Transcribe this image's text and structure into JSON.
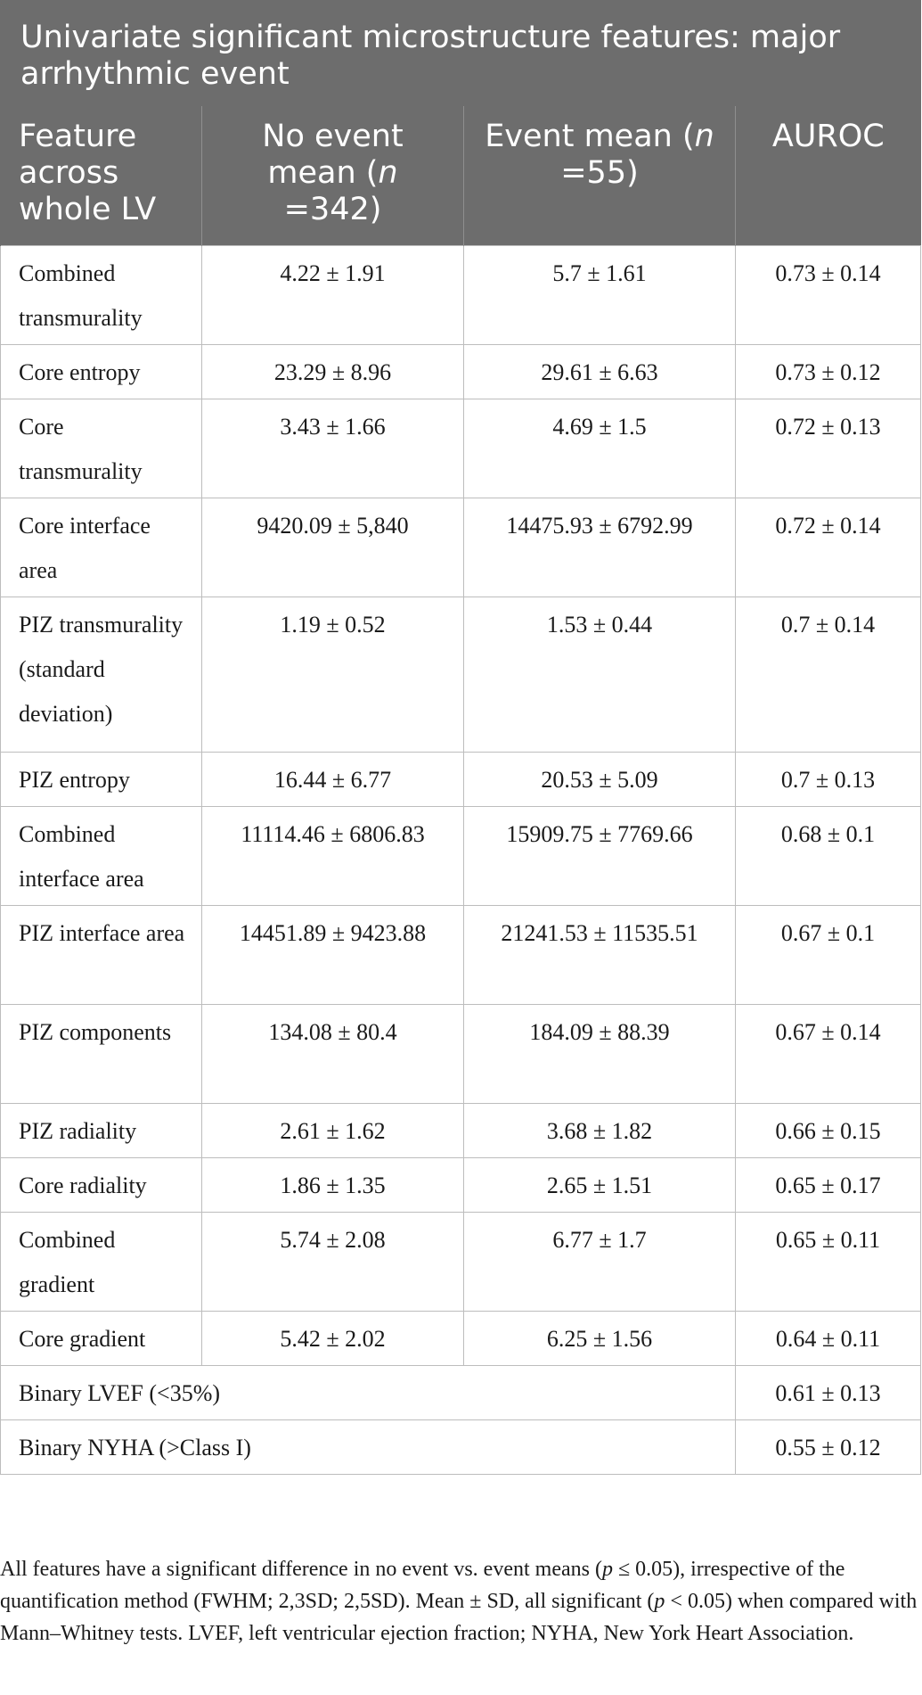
{
  "table": {
    "title": "Univariate significant microstructure features: major arrhythmic event",
    "headers": {
      "feature": "Feature across whole LV",
      "no_event_prefix": "No event mean (",
      "no_event_n_italic": "n",
      "no_event_suffix": " =342)",
      "event_prefix": "Event mean (",
      "event_n_italic": "n",
      "event_suffix": " =55)",
      "auroc": "AUROC"
    },
    "rows": [
      {
        "feature": "Combined transmurality",
        "no_event": "4.22 ± 1.91",
        "event": "5.7 ± 1.61",
        "auroc": "0.73 ± 0.14"
      },
      {
        "feature": "Core entropy",
        "no_event": "23.29 ± 8.96",
        "event": "29.61 ± 6.63",
        "auroc": "0.73 ± 0.12"
      },
      {
        "feature": "Core transmurality",
        "no_event": "3.43 ± 1.66",
        "event": "4.69 ± 1.5",
        "auroc": "0.72 ± 0.13"
      },
      {
        "feature": "Core interface area",
        "no_event": "9420.09 ± 5,840",
        "event": "14475.93 ± 6792.99",
        "auroc": "0.72 ± 0.14"
      },
      {
        "feature": "PIZ transmurality (standard deviation)",
        "no_event": "1.19 ± 0.52",
        "event": "1.53 ± 0.44",
        "auroc": "0.7 ± 0.14"
      },
      {
        "feature": "PIZ entropy",
        "no_event": "16.44 ± 6.77",
        "event": "20.53 ± 5.09",
        "auroc": "0.7 ± 0.13"
      },
      {
        "feature": "Combined interface area",
        "no_event": "11114.46 ± 6806.83",
        "event": "15909.75 ± 7769.66",
        "auroc": "0.68 ± 0.1"
      },
      {
        "feature": "PIZ interface area",
        "no_event": "14451.89 ± 9423.88",
        "event": "21241.53 ± 11535.51",
        "auroc": "0.67 ± 0.1"
      },
      {
        "feature": "PIZ components",
        "no_event": "134.08 ± 80.4",
        "event": "184.09 ± 88.39",
        "auroc": "0.67 ± 0.14"
      },
      {
        "feature": "PIZ radiality",
        "no_event": "2.61 ± 1.62",
        "event": "3.68 ± 1.82",
        "auroc": "0.66 ± 0.15"
      },
      {
        "feature": "Core radiality",
        "no_event": "1.86 ± 1.35",
        "event": "2.65 ± 1.51",
        "auroc": "0.65 ± 0.17"
      },
      {
        "feature": "Combined gradient",
        "no_event": "5.74 ± 2.08",
        "event": "6.77 ± 1.7",
        "auroc": "0.65 ± 0.11"
      },
      {
        "feature": "Core gradient",
        "no_event": "5.42 ± 2.02",
        "event": "6.25 ± 1.56",
        "auroc": "0.64 ± 0.11"
      }
    ],
    "binary_rows": [
      {
        "feature": "Binary LVEF (<35%)",
        "auroc": "0.61 ± 0.13"
      },
      {
        "feature": "Binary NYHA (>Class I)",
        "auroc": "0.55 ± 0.12"
      }
    ]
  },
  "footnote": {
    "part1": "All features have a significant difference in no event vs. event means (",
    "p1_italic": "p",
    "part2": " ≤ 0.05), irrespective of the quantification method (FWHM; 2,3SD; 2,5SD). Mean ± SD, all significant (",
    "p2_italic": "p",
    "part3": " < 0.05) when compared with Mann–Whitney tests. LVEF, left ventricular ejection fraction; NYHA, New York Heart Association."
  }
}
